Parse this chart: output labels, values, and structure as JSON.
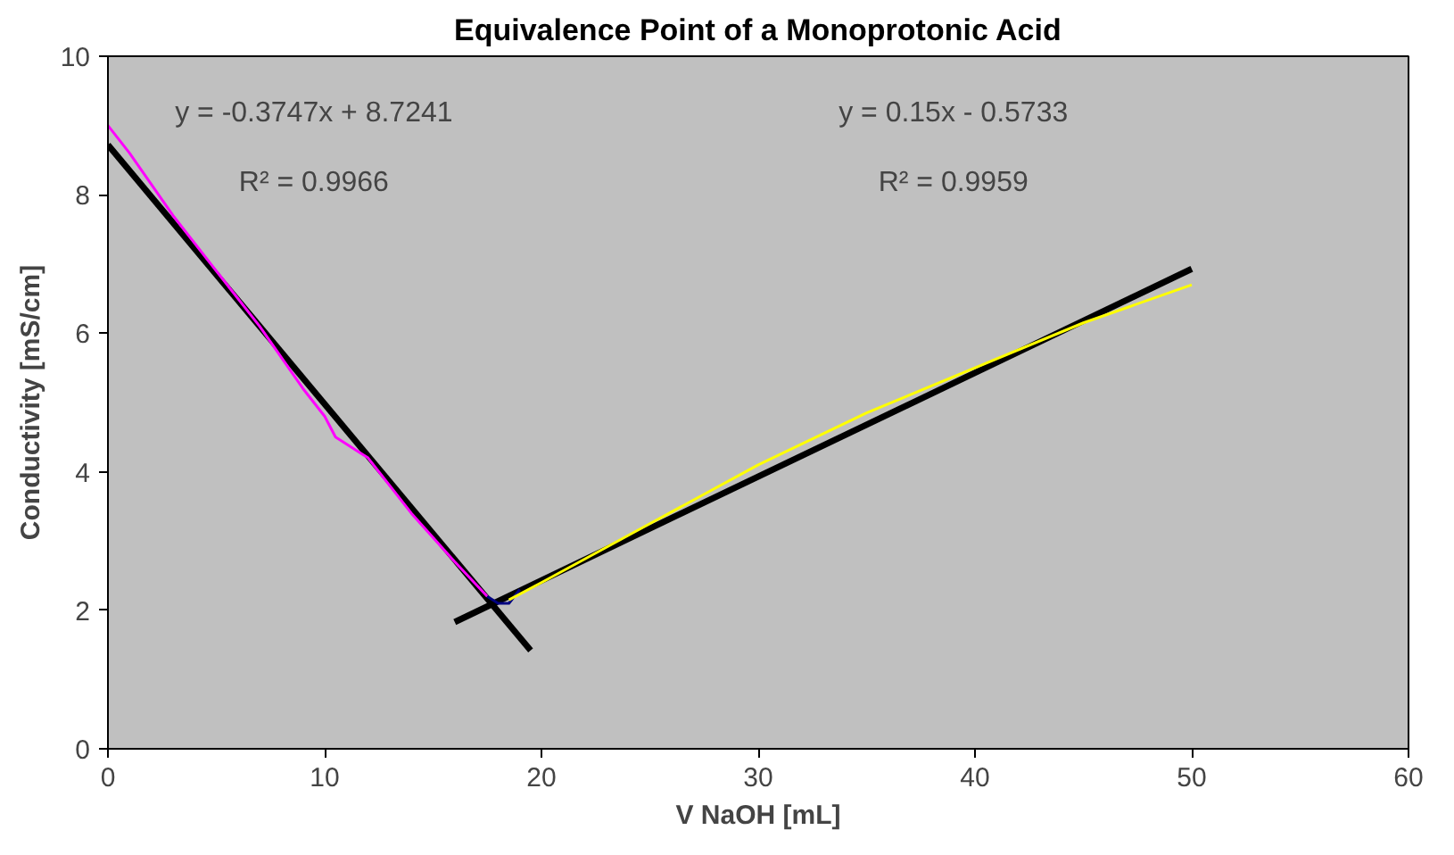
{
  "chart_data": {
    "type": "line",
    "title": "Equivalence Point of a Monoprotonic Acid",
    "xlabel": "V NaOH [mL]",
    "ylabel": "Conductivity [mS/cm]",
    "x": [
      0,
      1,
      3,
      5,
      7,
      9,
      10,
      10.5,
      11,
      12,
      14,
      16,
      17.5
    ],
    "series": [
      {
        "color": "#000000",
        "x": [
          0,
          19.5
        ],
        "values": [
          8.72,
          1.42
        ]
      },
      {
        "color": "#000000",
        "x": [
          16,
          50
        ],
        "values": [
          1.83,
          6.93
        ]
      },
      {
        "color": "#ff00ff",
        "values": [
          9.0,
          8.6,
          7.7,
          6.9,
          6.1,
          5.2,
          4.8,
          4.5,
          4.4,
          4.2,
          3.4,
          2.7,
          2.2
        ]
      },
      {
        "color": "#000080",
        "x": [
          17.5,
          18,
          18.5,
          19
        ],
        "values": [
          2.2,
          2.1,
          2.1,
          2.3
        ]
      },
      {
        "color": "#ffff00",
        "x": [
          18.5,
          20,
          25,
          30,
          35,
          40,
          45,
          50
        ],
        "values": [
          2.15,
          2.4,
          3.25,
          4.1,
          4.85,
          5.5,
          6.15,
          6.7
        ]
      }
    ],
    "xlim": [
      0,
      60
    ],
    "ylim": [
      0,
      10
    ],
    "xticks": [
      0,
      10,
      20,
      30,
      40,
      50,
      60
    ],
    "yticks": [
      0,
      2,
      4,
      6,
      8,
      10
    ],
    "grid": false,
    "annotations": [
      "y = -0.3747x + 8.7241",
      "R² = 0.9966",
      "y = 0.15x - 0.5733",
      "R² = 0.9959"
    ]
  }
}
